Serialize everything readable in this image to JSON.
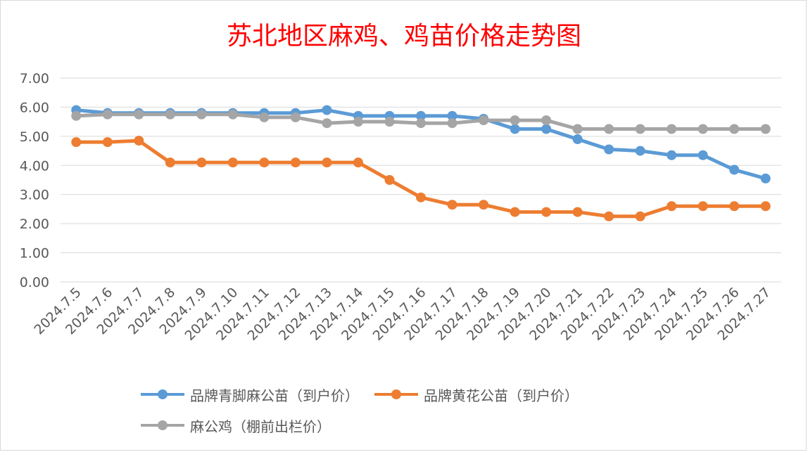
{
  "chart_data": {
    "type": "line",
    "title": "苏北地区麻鸡、鸡苗价格走势图",
    "categories": [
      "2024.7.5",
      "2024.7.6",
      "2024.7.7",
      "2024.7.8",
      "2024.7.9",
      "2024.7.10",
      "2024.7.11",
      "2024.7.12",
      "2024.7.13",
      "2024.7.14",
      "2024.7.15",
      "2024.7.16",
      "2024.7.17",
      "2024.7.18",
      "2024.7.19",
      "2024.7.20",
      "2024.7.21",
      "2024.7.22",
      "2024.7.23",
      "2024.7.24",
      "2024.7.25",
      "2024.7.26",
      "2024.7.27"
    ],
    "ylim": [
      0,
      7
    ],
    "yticks": [
      "0.00",
      "1.00",
      "2.00",
      "3.00",
      "4.00",
      "5.00",
      "6.00",
      "7.00"
    ],
    "grid": true,
    "legend_position": "bottom",
    "series": [
      {
        "name": "品牌青脚麻公苗（到户价）",
        "color": "#5b9bd5",
        "values": [
          5.9,
          5.8,
          5.8,
          5.8,
          5.8,
          5.8,
          5.8,
          5.8,
          5.9,
          5.7,
          5.7,
          5.7,
          5.7,
          5.6,
          5.25,
          5.25,
          4.9,
          4.55,
          4.5,
          4.35,
          4.35,
          3.85,
          3.55
        ]
      },
      {
        "name": "品牌黄花公苗（到户价）",
        "color": "#ed7d31",
        "values": [
          4.8,
          4.8,
          4.85,
          4.1,
          4.1,
          4.1,
          4.1,
          4.1,
          4.1,
          4.1,
          3.5,
          2.9,
          2.65,
          2.65,
          2.4,
          2.4,
          2.4,
          2.25,
          2.25,
          2.6,
          2.6,
          2.6,
          2.6
        ]
      },
      {
        "name": "麻公鸡（棚前出栏价）",
        "color": "#a5a5a5",
        "values": [
          5.7,
          5.75,
          5.75,
          5.75,
          5.75,
          5.75,
          5.65,
          5.65,
          5.45,
          5.5,
          5.5,
          5.45,
          5.45,
          5.55,
          5.55,
          5.55,
          5.25,
          5.25,
          5.25,
          5.25,
          5.25,
          5.25,
          5.25
        ]
      }
    ]
  }
}
